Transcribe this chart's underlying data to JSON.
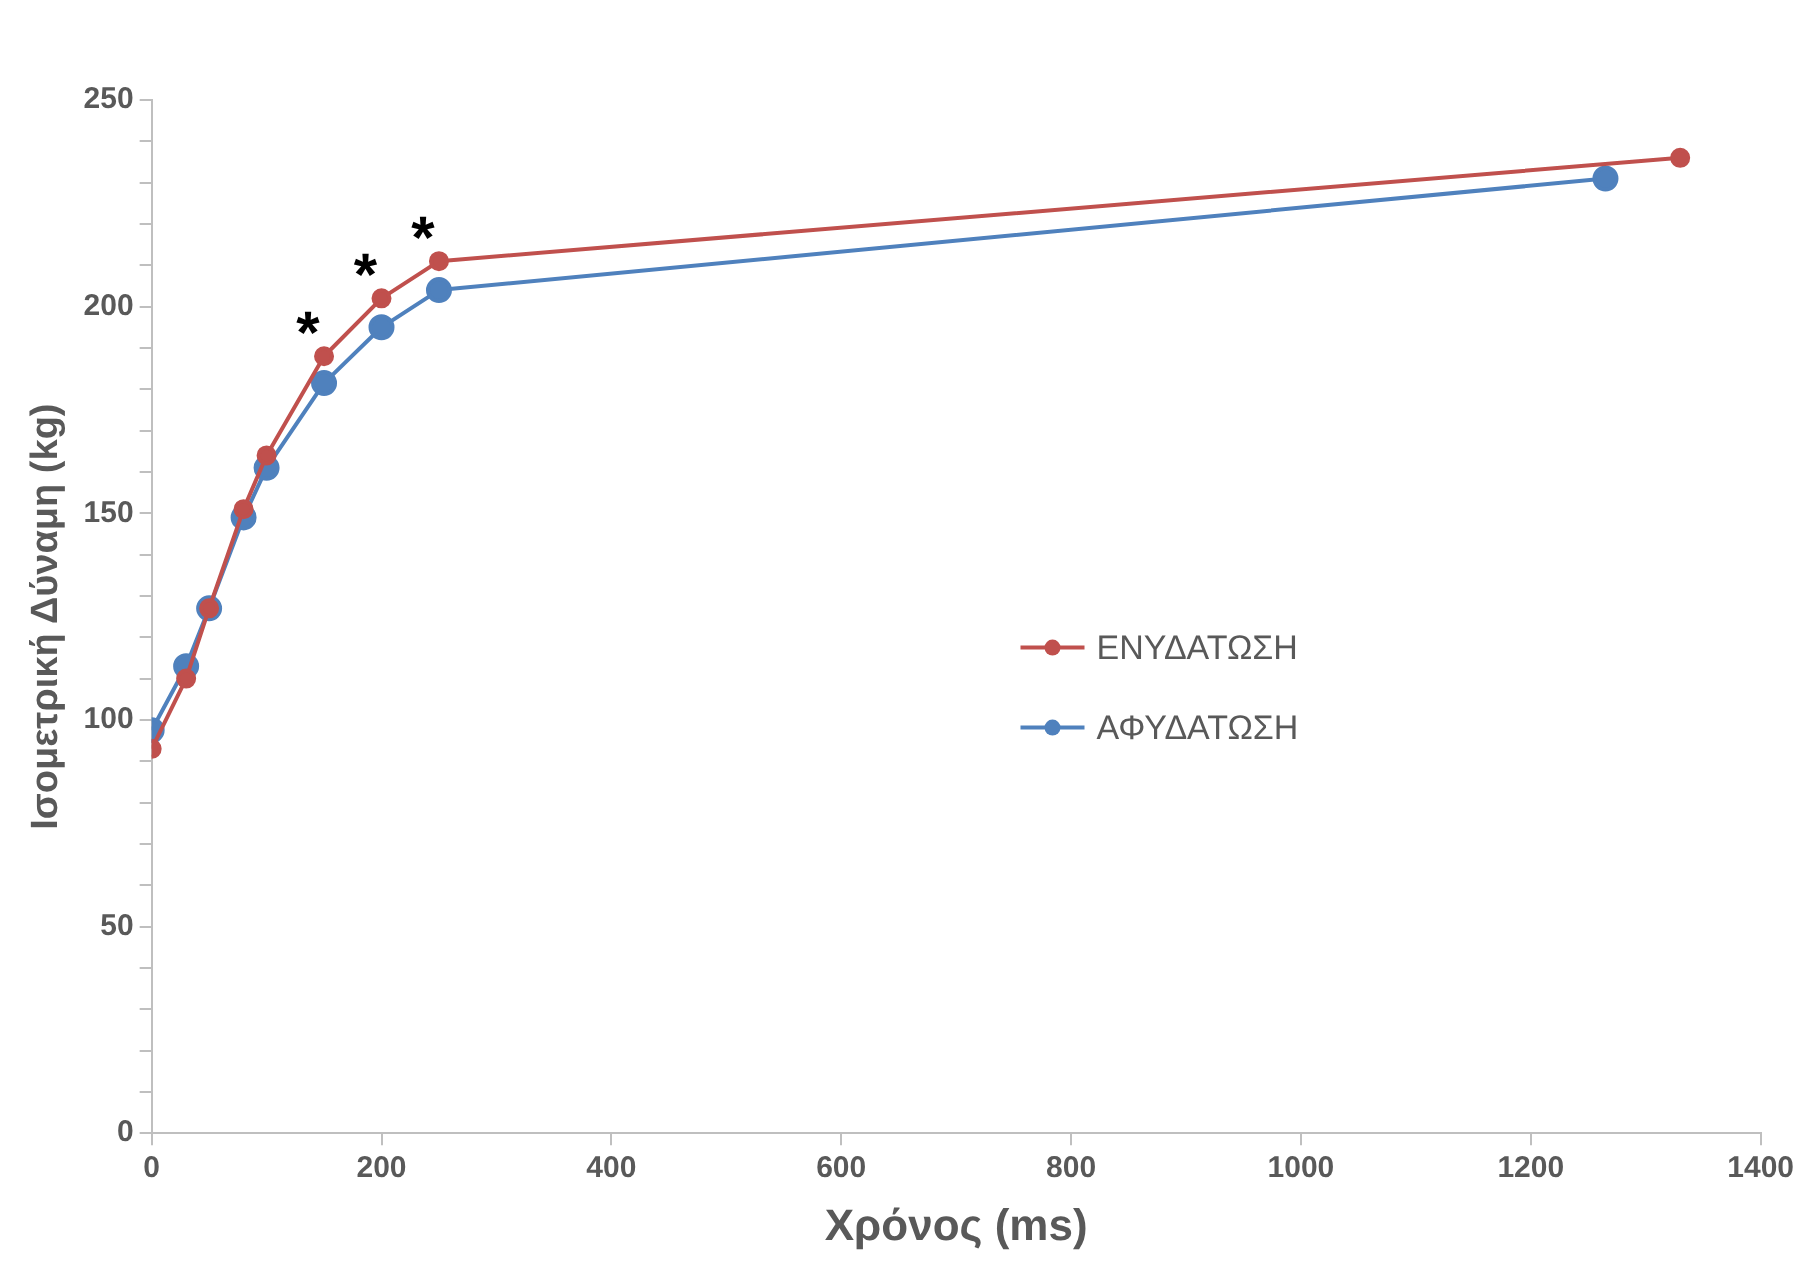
{
  "chart_data": {
    "type": "line",
    "xlabel": "Χρόνος (ms)",
    "ylabel": "Ισομετρική Δύναμη (kg)",
    "xlim": [
      0,
      1400
    ],
    "xticks": [
      0,
      200,
      400,
      600,
      800,
      1000,
      1200,
      1400
    ],
    "ylim": [
      0,
      250
    ],
    "yticks": [
      0,
      {
        "value": 10,
        "label": null
      },
      {
        "value": 20,
        "label": null
      },
      {
        "value": 30,
        "label": null
      },
      {
        "value": 40,
        "label": null
      },
      50,
      {
        "value": 60,
        "label": null
      },
      {
        "value": 70,
        "label": null
      },
      {
        "value": 80,
        "label": null
      },
      {
        "value": 90,
        "label": null
      },
      100,
      {
        "value": 110,
        "label": null
      },
      {
        "value": 120,
        "label": null
      },
      {
        "value": 130,
        "label": null
      },
      {
        "value": 140,
        "label": null
      },
      150,
      {
        "value": 160,
        "label": null
      },
      {
        "value": 170,
        "label": null
      },
      {
        "value": 180,
        "label": null
      },
      {
        "value": 190,
        "label": null
      },
      200,
      {
        "value": 210,
        "label": null
      },
      {
        "value": 220,
        "label": null
      },
      {
        "value": 230,
        "label": null
      },
      {
        "value": 240,
        "label": null
      },
      250
    ],
    "grid": false,
    "legend": "right",
    "marker": "circle",
    "line_style": "solid",
    "series": [
      {
        "name": "ΕΝΥΔΑΤΩΣΗ",
        "color": "#c0504d",
        "x": [
          0,
          30,
          50,
          80,
          100,
          150,
          200,
          250,
          1330
        ],
        "values": [
          93,
          110,
          127,
          151,
          164,
          188,
          202,
          211,
          236
        ]
      },
      {
        "name": "ΑΦΥΔΑΤΩΣΗ",
        "color": "#4f81bd",
        "x": [
          0,
          30,
          50,
          80,
          100,
          150,
          200,
          250,
          1265
        ],
        "values": [
          97.5,
          113,
          127,
          149,
          161,
          181.5,
          195,
          204,
          231
        ]
      }
    ],
    "annotations": [
      {
        "text": "*",
        "x": 150,
        "y": 188
      },
      {
        "text": "*",
        "x": 200,
        "y": 202
      },
      {
        "text": "*",
        "x": 250,
        "y": 211
      }
    ]
  }
}
